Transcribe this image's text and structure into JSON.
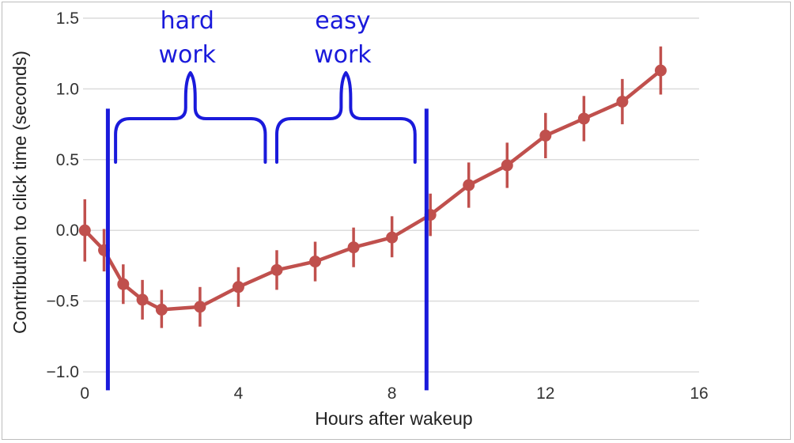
{
  "chart_data": {
    "type": "line",
    "title": "",
    "xlabel": "Hours after wakeup",
    "ylabel": "Contribution to click time (seconds)",
    "xlim": [
      -0.5,
      16
    ],
    "ylim": [
      -1.1,
      1.55
    ],
    "xticks": [
      0,
      4,
      8,
      12,
      16
    ],
    "yticks": [
      -1.0,
      -0.5,
      0.0,
      0.5,
      1.0,
      1.5
    ],
    "ytick_labels": [
      "−1.0",
      "−0.5",
      "0.0",
      "0.5",
      "1.0",
      "1.5"
    ],
    "grid": "horizontal",
    "series": [
      {
        "color": "#c0504d",
        "x": [
          0,
          0.5,
          1,
          1.5,
          2,
          3,
          4,
          5,
          6,
          7,
          8,
          9,
          10,
          11,
          12,
          13,
          14,
          15
        ],
        "y": [
          0.0,
          -0.14,
          -0.38,
          -0.49,
          -0.56,
          -0.54,
          -0.4,
          -0.28,
          -0.22,
          -0.12,
          -0.05,
          0.11,
          0.32,
          0.46,
          0.67,
          0.79,
          0.91,
          1.13
        ],
        "y_low": [
          -0.22,
          -0.29,
          -0.52,
          -0.63,
          -0.69,
          -0.68,
          -0.54,
          -0.42,
          -0.36,
          -0.26,
          -0.19,
          -0.04,
          0.16,
          0.3,
          0.51,
          0.63,
          0.75,
          0.96
        ],
        "y_high": [
          0.22,
          0.01,
          -0.24,
          -0.35,
          -0.42,
          -0.4,
          -0.26,
          -0.14,
          -0.08,
          0.02,
          0.1,
          0.26,
          0.48,
          0.62,
          0.83,
          0.95,
          1.07,
          1.3
        ]
      }
    ],
    "annotations": {
      "color": "#1a1adb",
      "vertical_lines_x": [
        0.6,
        8.9
      ],
      "brackets": [
        {
          "label_lines": [
            "hard",
            "work"
          ],
          "x_start": 0.8,
          "x_end": 4.7
        },
        {
          "label_lines": [
            "easy",
            "work"
          ],
          "x_start": 5.0,
          "x_end": 8.6
        }
      ]
    }
  }
}
